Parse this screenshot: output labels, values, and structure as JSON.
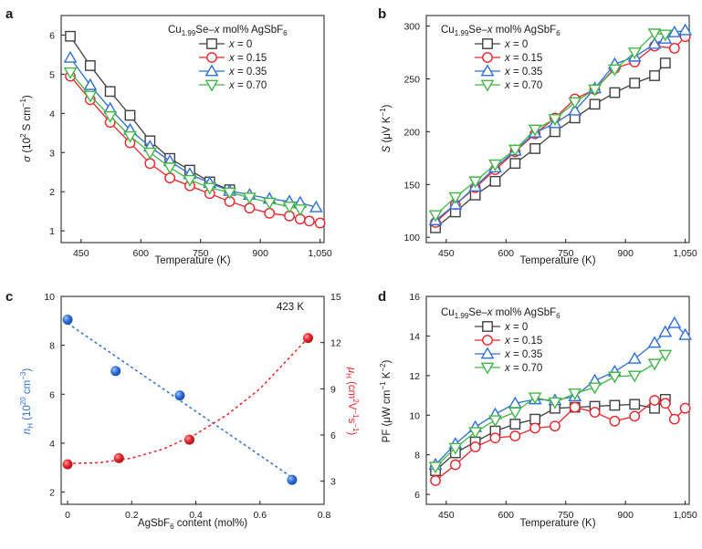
{
  "chart_data": [
    {
      "panel": "a",
      "type": "line",
      "title": "",
      "legend_title": "Cu1.99Se–x mol% AgSbF6",
      "legend_title_parts": {
        "pre": "Cu",
        "sub1": "1.99",
        "mid": "Se–",
        "x": "x",
        "post": " mol% AgSbF",
        "sub2": "6"
      },
      "legend_position": "top-right",
      "xlabel": "Temperature (K)",
      "ylabel": "σ (10² S cm⁻¹)",
      "xlim": [
        400,
        1060
      ],
      "ylim": [
        0.7,
        6.5
      ],
      "xticks": [
        450,
        600,
        750,
        900,
        1050
      ],
      "xtick_labels": [
        "450",
        "600",
        "750",
        "900",
        "1,050"
      ],
      "yticks": [
        1,
        2,
        3,
        4,
        5,
        6
      ],
      "ytick_labels": [
        "1",
        "2",
        "3",
        "4",
        "5",
        "6"
      ],
      "series": [
        {
          "name": "x = 0",
          "label_prefix": "x",
          "label_value": " = 0",
          "color": "#404040",
          "marker": "square",
          "x": [
            423,
            473,
            523,
            573,
            623,
            673,
            723,
            773,
            823
          ],
          "y": [
            5.97,
            5.22,
            4.56,
            3.95,
            3.3,
            2.85,
            2.55,
            2.25,
            2.05
          ]
        },
        {
          "name": "x = 0.15",
          "label_prefix": "x",
          "label_value": " = 0.15",
          "color": "#e8262d",
          "marker": "circle",
          "x": [
            423,
            473,
            523,
            573,
            623,
            673,
            723,
            773,
            823,
            873,
            923,
            973,
            1000,
            1023,
            1050
          ],
          "y": [
            4.95,
            4.35,
            3.77,
            3.25,
            2.72,
            2.35,
            2.15,
            1.95,
            1.75,
            1.58,
            1.45,
            1.38,
            1.3,
            1.25,
            1.2
          ]
        },
        {
          "name": "x = 0.35",
          "label_prefix": "x",
          "label_value": " = 0.35",
          "color": "#2f6fd6",
          "marker": "triangle",
          "x": [
            423,
            473,
            523,
            573,
            623,
            673,
            723,
            773,
            823,
            873,
            923,
            973,
            1000,
            1040
          ],
          "y": [
            5.42,
            4.72,
            4.12,
            3.58,
            3.15,
            2.78,
            2.45,
            2.22,
            2.02,
            1.92,
            1.82,
            1.75,
            1.72,
            1.6
          ]
        },
        {
          "name": "x = 0.70",
          "label_prefix": "x",
          "label_value": " = 0.70",
          "color": "#43b648",
          "marker": "triangle-down",
          "x": [
            423,
            473,
            523,
            573,
            623,
            673,
            723,
            773,
            823,
            873,
            923,
            973,
            1000
          ],
          "y": [
            5.05,
            4.45,
            3.93,
            3.42,
            3.0,
            2.62,
            2.3,
            2.1,
            1.98,
            1.85,
            1.72,
            1.62,
            1.55
          ]
        }
      ]
    },
    {
      "panel": "b",
      "type": "line",
      "title": "",
      "legend_title": "Cu1.99Se–x mol% AgSbF6",
      "legend_title_parts": {
        "pre": "Cu",
        "sub1": "1.99",
        "mid": "Se–",
        "x": "x",
        "post": " mol% AgSbF",
        "sub2": "6"
      },
      "legend_position": "top-left",
      "xlabel": "Temperature (K)",
      "ylabel": "S (μV K⁻¹)",
      "xlim": [
        400,
        1060
      ],
      "ylim": [
        95,
        310
      ],
      "xticks": [
        450,
        600,
        750,
        900,
        1050
      ],
      "xtick_labels": [
        "450",
        "600",
        "750",
        "900",
        "1,050"
      ],
      "yticks": [
        100,
        150,
        200,
        250,
        300
      ],
      "ytick_labels": [
        "100",
        "150",
        "200",
        "250",
        "300"
      ],
      "series": [
        {
          "name": "x = 0",
          "label_prefix": "x",
          "label_value": " = 0",
          "color": "#404040",
          "marker": "square",
          "x": [
            423,
            473,
            523,
            573,
            623,
            673,
            723,
            773,
            823,
            873,
            923,
            973,
            1000
          ],
          "y": [
            109,
            124,
            140,
            153,
            170,
            184,
            200,
            213,
            226,
            237,
            246,
            253,
            265
          ]
        },
        {
          "name": "x = 0.15",
          "label_prefix": "x",
          "label_value": " = 0.15",
          "color": "#e8262d",
          "marker": "circle",
          "x": [
            423,
            473,
            523,
            573,
            623,
            673,
            723,
            773,
            823,
            873,
            923,
            973,
            1023,
            1050
          ],
          "y": [
            114,
            131,
            147,
            164,
            181,
            198,
            213,
            231,
            240,
            260,
            266,
            281,
            279,
            290
          ]
        },
        {
          "name": "x = 0.35",
          "label_prefix": "x",
          "label_value": " = 0.35",
          "color": "#2f6fd6",
          "marker": "triangle",
          "x": [
            423,
            473,
            523,
            573,
            623,
            673,
            723,
            773,
            823,
            873,
            923,
            973,
            1000,
            1023,
            1050
          ],
          "y": [
            116,
            131,
            148,
            166,
            182,
            199,
            208,
            220,
            241,
            264,
            271,
            283,
            288,
            294,
            296
          ]
        },
        {
          "name": "x = 0.70",
          "label_prefix": "x",
          "label_value": " = 0.70",
          "color": "#43b648",
          "marker": "triangle-down",
          "x": [
            423,
            473,
            523,
            573,
            623,
            673,
            723,
            773,
            823,
            873,
            923,
            973,
            1000
          ],
          "y": [
            121,
            138,
            153,
            169,
            183,
            202,
            212,
            228,
            240,
            259,
            275,
            293,
            292
          ]
        }
      ]
    },
    {
      "panel": "c",
      "type": "scatter",
      "title": "",
      "annotation": "423 K",
      "xlabel": "AgSbF6 content (mol%)",
      "xlabel_parts": {
        "pre": "AgSbF",
        "sub": "6",
        "post": " content (mol%)"
      },
      "ylabel": "nH (10²⁰ cm⁻³)",
      "ylabel_parts": {
        "n": "n",
        "nsub": "H",
        "body": " (10",
        "exp1": "20",
        "tail": " cm",
        "exp2": "−3",
        "close": ")"
      },
      "ylabel2": "μH (cm² V⁻¹ s⁻¹)",
      "ylabel2_parts": {
        "mu": "μ",
        "musub": "H",
        "body": " (cm",
        "exp1": "2",
        "tail": "V",
        "exp2": "−1",
        "tail2": "s",
        "exp3": "−1",
        "close": ")"
      },
      "xlim": [
        -0.02,
        0.8
      ],
      "ylim": [
        1.5,
        10
      ],
      "y2lim": [
        1.5,
        15
      ],
      "xticks": [
        0,
        0.2,
        0.4,
        0.6,
        0.8
      ],
      "xtick_labels": [
        "0",
        "0.2",
        "0.4",
        "0.6",
        "0.8"
      ],
      "yticks": [
        2,
        4,
        6,
        8,
        10
      ],
      "ytick_labels": [
        "2",
        "4",
        "6",
        "8",
        "10"
      ],
      "y2ticks": [
        3,
        6,
        9,
        12,
        15
      ],
      "y2tick_labels": [
        "3",
        "6",
        "9",
        "12",
        "15"
      ],
      "series": [
        {
          "name": "nH",
          "color": "#2f6fd6",
          "axis": "left",
          "marker": "sphere",
          "x": [
            0,
            0.15,
            0.35,
            0.7
          ],
          "y": [
            9.05,
            6.95,
            5.95,
            2.5
          ]
        },
        {
          "name": "μH",
          "color": "#e8262d",
          "axis": "right",
          "marker": "sphere",
          "x": [
            0,
            0.16,
            0.38,
            0.75
          ],
          "y": [
            4.1,
            4.5,
            5.7,
            12.3
          ]
        }
      ],
      "fits": [
        {
          "color": "#2f6fd6",
          "axis": "left",
          "x": [
            0,
            0.7
          ],
          "y": [
            8.9,
            2.6
          ]
        },
        {
          "color": "#e8262d",
          "axis": "right",
          "x": [
            0,
            0.1,
            0.2,
            0.3,
            0.4,
            0.5,
            0.6,
            0.7,
            0.75
          ],
          "y": [
            4.15,
            4.2,
            4.5,
            5.1,
            6.05,
            7.35,
            9.0,
            11.2,
            12.3
          ]
        }
      ]
    },
    {
      "panel": "d",
      "type": "line",
      "title": "",
      "legend_title": "Cu1.99Se–x mol% AgSbF6",
      "legend_title_parts": {
        "pre": "Cu",
        "sub1": "1.99",
        "mid": "Se–",
        "x": "x",
        "post": " mol% AgSbF",
        "sub2": "6"
      },
      "legend_position": "top-left",
      "xlabel": "Temperature (K)",
      "ylabel": "PF (μW cm⁻¹ K⁻²)",
      "xlim": [
        400,
        1060
      ],
      "ylim": [
        5.5,
        16
      ],
      "xticks": [
        450,
        600,
        750,
        900,
        1050
      ],
      "xtick_labels": [
        "450",
        "600",
        "750",
        "900",
        "1,050"
      ],
      "yticks": [
        6,
        8,
        10,
        12,
        14,
        16
      ],
      "ytick_labels": [
        "6",
        "8",
        "10",
        "12",
        "14",
        "16"
      ],
      "series": [
        {
          "name": "x = 0",
          "label_prefix": "x",
          "label_value": " = 0",
          "color": "#404040",
          "marker": "square",
          "x": [
            423,
            473,
            523,
            573,
            623,
            673,
            723,
            773,
            823,
            873,
            923,
            973,
            1000
          ],
          "y": [
            7.2,
            8.1,
            8.65,
            9.2,
            9.55,
            9.8,
            10.35,
            10.4,
            10.45,
            10.5,
            10.55,
            10.35,
            10.8
          ]
        },
        {
          "name": "x = 0.15",
          "label_prefix": "x",
          "label_value": " = 0.15",
          "color": "#e8262d",
          "marker": "circle",
          "x": [
            423,
            473,
            523,
            573,
            623,
            673,
            723,
            773,
            823,
            873,
            923,
            973,
            1000,
            1023,
            1050
          ],
          "y": [
            6.7,
            7.5,
            8.4,
            8.85,
            8.95,
            9.35,
            9.45,
            10.4,
            10.15,
            9.7,
            9.95,
            10.75,
            10.6,
            9.8,
            10.35
          ]
        },
        {
          "name": "x = 0.35",
          "label_prefix": "x",
          "label_value": " = 0.35",
          "color": "#2f6fd6",
          "marker": "triangle",
          "x": [
            423,
            473,
            523,
            573,
            623,
            673,
            723,
            773,
            823,
            873,
            923,
            973,
            1000,
            1023,
            1050
          ],
          "y": [
            7.5,
            8.55,
            9.4,
            10.05,
            10.6,
            10.8,
            10.75,
            10.95,
            11.75,
            12.2,
            12.85,
            13.65,
            14.2,
            14.65,
            14.05
          ]
        },
        {
          "name": "x = 0.70",
          "label_prefix": "x",
          "label_value": " = 0.70",
          "color": "#43b648",
          "marker": "triangle-down",
          "x": [
            423,
            473,
            523,
            573,
            623,
            673,
            723,
            773,
            823,
            873,
            923,
            973,
            1000
          ],
          "y": [
            7.4,
            8.35,
            9.15,
            9.75,
            10.15,
            10.9,
            10.65,
            11.1,
            11.4,
            11.95,
            12.0,
            12.6,
            13.05
          ]
        }
      ]
    }
  ]
}
